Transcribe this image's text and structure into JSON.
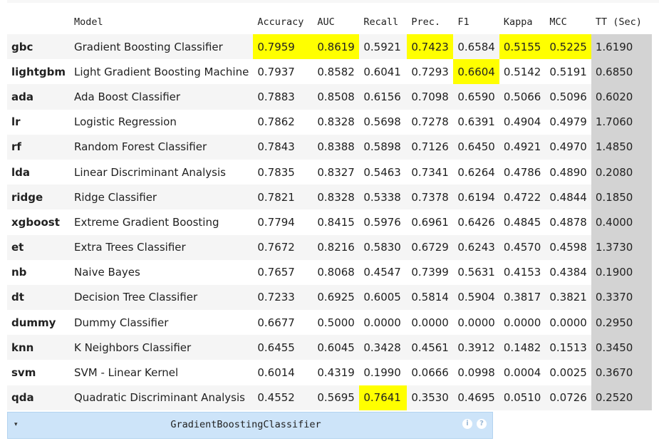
{
  "table": {
    "columns": [
      "",
      "Model",
      "Accuracy",
      "AUC",
      "Recall",
      "Prec.",
      "F1",
      "Kappa",
      "MCC",
      "TT (Sec)"
    ],
    "rows": [
      {
        "id": "gbc",
        "model": "Gradient Boosting Classifier",
        "accuracy": "0.7959",
        "auc": "0.8619",
        "recall": "0.5921",
        "prec": "0.7423",
        "f1": "0.6584",
        "kappa": "0.5155",
        "mcc": "0.5225",
        "tt": "1.6190",
        "highlight": [
          "accuracy",
          "auc",
          "prec",
          "kappa",
          "mcc"
        ]
      },
      {
        "id": "lightgbm",
        "model": "Light Gradient Boosting Machine",
        "accuracy": "0.7937",
        "auc": "0.8582",
        "recall": "0.6041",
        "prec": "0.7293",
        "f1": "0.6604",
        "kappa": "0.5142",
        "mcc": "0.5191",
        "tt": "0.6850",
        "highlight": [
          "f1"
        ]
      },
      {
        "id": "ada",
        "model": "Ada Boost Classifier",
        "accuracy": "0.7883",
        "auc": "0.8508",
        "recall": "0.6156",
        "prec": "0.7098",
        "f1": "0.6590",
        "kappa": "0.5066",
        "mcc": "0.5096",
        "tt": "0.6020",
        "highlight": []
      },
      {
        "id": "lr",
        "model": "Logistic Regression",
        "accuracy": "0.7862",
        "auc": "0.8328",
        "recall": "0.5698",
        "prec": "0.7278",
        "f1": "0.6391",
        "kappa": "0.4904",
        "mcc": "0.4979",
        "tt": "1.7060",
        "highlight": []
      },
      {
        "id": "rf",
        "model": "Random Forest Classifier",
        "accuracy": "0.7843",
        "auc": "0.8388",
        "recall": "0.5898",
        "prec": "0.7126",
        "f1": "0.6450",
        "kappa": "0.4921",
        "mcc": "0.4970",
        "tt": "1.4850",
        "highlight": []
      },
      {
        "id": "lda",
        "model": "Linear Discriminant Analysis",
        "accuracy": "0.7835",
        "auc": "0.8327",
        "recall": "0.5463",
        "prec": "0.7341",
        "f1": "0.6264",
        "kappa": "0.4786",
        "mcc": "0.4890",
        "tt": "0.2080",
        "highlight": []
      },
      {
        "id": "ridge",
        "model": "Ridge Classifier",
        "accuracy": "0.7821",
        "auc": "0.8328",
        "recall": "0.5338",
        "prec": "0.7378",
        "f1": "0.6194",
        "kappa": "0.4722",
        "mcc": "0.4844",
        "tt": "0.1850",
        "highlight": []
      },
      {
        "id": "xgboost",
        "model": "Extreme Gradient Boosting",
        "accuracy": "0.7794",
        "auc": "0.8415",
        "recall": "0.5976",
        "prec": "0.6961",
        "f1": "0.6426",
        "kappa": "0.4845",
        "mcc": "0.4878",
        "tt": "0.4000",
        "highlight": []
      },
      {
        "id": "et",
        "model": "Extra Trees Classifier",
        "accuracy": "0.7672",
        "auc": "0.8216",
        "recall": "0.5830",
        "prec": "0.6729",
        "f1": "0.6243",
        "kappa": "0.4570",
        "mcc": "0.4598",
        "tt": "1.3730",
        "highlight": []
      },
      {
        "id": "nb",
        "model": "Naive Bayes",
        "accuracy": "0.7657",
        "auc": "0.8068",
        "recall": "0.4547",
        "prec": "0.7399",
        "f1": "0.5631",
        "kappa": "0.4153",
        "mcc": "0.4384",
        "tt": "0.1900",
        "highlight": []
      },
      {
        "id": "dt",
        "model": "Decision Tree Classifier",
        "accuracy": "0.7233",
        "auc": "0.6925",
        "recall": "0.6005",
        "prec": "0.5814",
        "f1": "0.5904",
        "kappa": "0.3817",
        "mcc": "0.3821",
        "tt": "0.3370",
        "highlight": []
      },
      {
        "id": "dummy",
        "model": "Dummy Classifier",
        "accuracy": "0.6677",
        "auc": "0.5000",
        "recall": "0.0000",
        "prec": "0.0000",
        "f1": "0.0000",
        "kappa": "0.0000",
        "mcc": "0.0000",
        "tt": "0.2950",
        "highlight": []
      },
      {
        "id": "knn",
        "model": "K Neighbors Classifier",
        "accuracy": "0.6455",
        "auc": "0.6045",
        "recall": "0.3428",
        "prec": "0.4561",
        "f1": "0.3912",
        "kappa": "0.1482",
        "mcc": "0.1513",
        "tt": "0.3450",
        "highlight": []
      },
      {
        "id": "svm",
        "model": "SVM - Linear Kernel",
        "accuracy": "0.6014",
        "auc": "0.4319",
        "recall": "0.1990",
        "prec": "0.0666",
        "f1": "0.0998",
        "kappa": "0.0004",
        "mcc": "0.0025",
        "tt": "0.3670",
        "highlight": []
      },
      {
        "id": "qda",
        "model": "Quadratic Discriminant Analysis",
        "accuracy": "0.4552",
        "auc": "0.5695",
        "recall": "0.7641",
        "prec": "0.3530",
        "f1": "0.4695",
        "kappa": "0.0510",
        "mcc": "0.0726",
        "tt": "0.2520",
        "highlight": [
          "recall"
        ]
      }
    ]
  },
  "colors": {
    "highlight": "#ffff00",
    "tt_column": "#d3d3d3",
    "row_odd": "#f5f5f5",
    "row_even": "#ffffff",
    "widget_bg": "#cde4f9"
  },
  "widget": {
    "title": "GradientBoostingClassifier",
    "caret": "▾",
    "icons": [
      "info-icon",
      "help-icon"
    ],
    "icon_glyphs": [
      "i",
      "?"
    ]
  }
}
